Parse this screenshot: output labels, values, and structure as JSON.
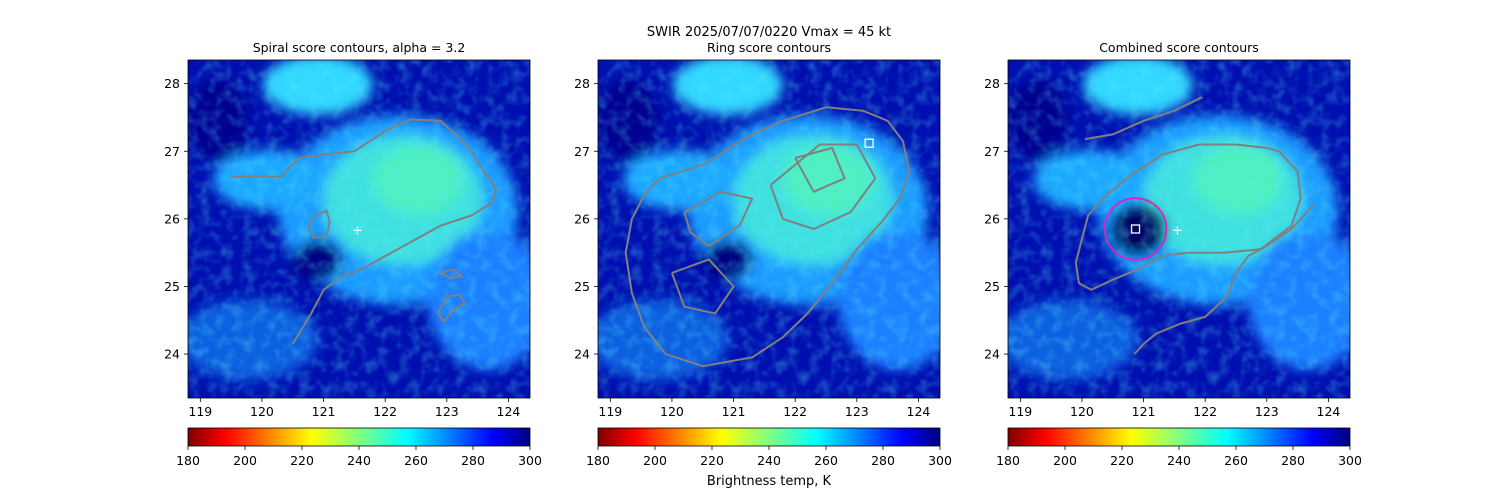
{
  "figure": {
    "suptitle_line1": "SWIR  2025/07/07/0220    Vmax = 45 kt",
    "colorbar_label": "Brightness temp, K"
  },
  "colors": {
    "contour": "#808080",
    "marker": "#ffffff",
    "circle": "#e020c0"
  },
  "chart_data": [
    {
      "type": "heatmap",
      "title": "Spiral score contours, alpha =  3.2",
      "x_ticks": [
        119,
        120,
        121,
        122,
        123,
        124
      ],
      "y_ticks": [
        24,
        25,
        26,
        27,
        28
      ],
      "xlim": [
        118.8,
        124.35
      ],
      "ylim": [
        23.35,
        28.35
      ],
      "center_plus": [
        121.55,
        25.83
      ],
      "contours": [
        [
          [
            119.5,
            26.62
          ],
          [
            120.0,
            26.63
          ],
          [
            120.3,
            26.62
          ],
          [
            120.6,
            26.9
          ],
          [
            121.0,
            26.95
          ],
          [
            121.5,
            27.0
          ],
          [
            122.0,
            27.3
          ],
          [
            122.4,
            27.47
          ],
          [
            122.9,
            27.45
          ],
          [
            123.2,
            27.2
          ],
          [
            123.4,
            27.0
          ],
          [
            123.6,
            26.7
          ],
          [
            123.8,
            26.45
          ],
          [
            123.75,
            26.25
          ],
          [
            123.4,
            26.05
          ],
          [
            122.9,
            25.9
          ],
          [
            122.5,
            25.7
          ],
          [
            122.1,
            25.5
          ],
          [
            121.6,
            25.25
          ],
          [
            121.3,
            25.15
          ],
          [
            121.0,
            24.95
          ],
          [
            120.8,
            24.6
          ],
          [
            120.6,
            24.3
          ],
          [
            120.5,
            24.15
          ]
        ],
        [
          [
            120.85,
            26.05
          ],
          [
            121.05,
            26.12
          ],
          [
            121.1,
            25.95
          ],
          [
            121.05,
            25.75
          ],
          [
            120.85,
            25.72
          ],
          [
            120.75,
            25.85
          ],
          [
            120.85,
            26.05
          ]
        ],
        [
          [
            122.85,
            24.6
          ],
          [
            123.0,
            24.85
          ],
          [
            123.2,
            24.88
          ],
          [
            123.3,
            24.75
          ],
          [
            123.1,
            24.65
          ],
          [
            122.95,
            24.48
          ],
          [
            122.85,
            24.6
          ]
        ],
        [
          [
            122.9,
            25.2
          ],
          [
            123.1,
            25.25
          ],
          [
            123.25,
            25.15
          ],
          [
            123.05,
            25.12
          ],
          [
            122.9,
            25.2
          ]
        ]
      ],
      "colorbar": {
        "ticks": [
          180,
          200,
          220,
          240,
          260,
          280,
          300
        ],
        "range": [
          180,
          300
        ]
      }
    },
    {
      "type": "heatmap",
      "title": "Ring score contours",
      "x_ticks": [
        119,
        120,
        121,
        122,
        123,
        124
      ],
      "y_ticks": [
        24,
        25,
        26,
        27,
        28
      ],
      "xlim": [
        118.8,
        124.35
      ],
      "ylim": [
        23.35,
        28.35
      ],
      "square_marker": [
        123.2,
        27.12
      ],
      "contours": [
        [
          [
            119.8,
            26.6
          ],
          [
            120.5,
            26.8
          ],
          [
            121.2,
            27.2
          ],
          [
            121.8,
            27.45
          ],
          [
            122.5,
            27.65
          ],
          [
            123.1,
            27.6
          ],
          [
            123.5,
            27.45
          ],
          [
            123.75,
            27.15
          ],
          [
            123.85,
            26.7
          ],
          [
            123.7,
            26.3
          ],
          [
            123.4,
            25.95
          ],
          [
            123.0,
            25.55
          ],
          [
            122.6,
            25.05
          ],
          [
            122.2,
            24.6
          ],
          [
            121.8,
            24.25
          ],
          [
            121.3,
            23.95
          ],
          [
            120.5,
            23.82
          ],
          [
            119.9,
            24.0
          ],
          [
            119.55,
            24.4
          ],
          [
            119.35,
            24.9
          ],
          [
            119.25,
            25.5
          ],
          [
            119.35,
            26.0
          ],
          [
            119.55,
            26.35
          ],
          [
            119.8,
            26.6
          ]
        ],
        [
          [
            120.2,
            26.1
          ],
          [
            120.8,
            26.4
          ],
          [
            121.3,
            26.3
          ],
          [
            121.1,
            25.9
          ],
          [
            120.6,
            25.6
          ],
          [
            120.3,
            25.8
          ],
          [
            120.2,
            26.1
          ]
        ],
        [
          [
            121.6,
            26.5
          ],
          [
            122.4,
            27.1
          ],
          [
            123.0,
            27.1
          ],
          [
            123.3,
            26.6
          ],
          [
            122.9,
            26.1
          ],
          [
            122.3,
            25.85
          ],
          [
            121.8,
            26.0
          ],
          [
            121.6,
            26.5
          ]
        ],
        [
          [
            120.0,
            25.2
          ],
          [
            120.6,
            25.4
          ],
          [
            121.0,
            25.0
          ],
          [
            120.7,
            24.6
          ],
          [
            120.2,
            24.7
          ],
          [
            120.0,
            25.2
          ]
        ],
        [
          [
            122.0,
            26.9
          ],
          [
            122.6,
            27.05
          ],
          [
            122.8,
            26.6
          ],
          [
            122.3,
            26.4
          ],
          [
            122.0,
            26.9
          ]
        ]
      ],
      "colorbar": {
        "ticks": [
          180,
          200,
          220,
          240,
          260,
          280,
          300
        ],
        "range": [
          180,
          300
        ]
      }
    },
    {
      "type": "heatmap",
      "title": "Combined score contours",
      "x_ticks": [
        119,
        120,
        121,
        122,
        123,
        124
      ],
      "y_ticks": [
        24,
        25,
        26,
        27,
        28
      ],
      "xlim": [
        118.8,
        124.35
      ],
      "ylim": [
        23.35,
        28.35
      ],
      "center_plus": [
        121.55,
        25.83
      ],
      "square_marker": [
        120.87,
        25.85
      ],
      "circle": {
        "center": [
          120.87,
          25.85
        ],
        "radius_deg": 0.5
      },
      "contours": [
        [
          [
            120.05,
            27.18
          ],
          [
            120.5,
            27.25
          ],
          [
            121.0,
            27.45
          ],
          [
            121.5,
            27.6
          ],
          [
            121.95,
            27.8
          ]
        ],
        [
          [
            123.75,
            26.2
          ],
          [
            123.4,
            25.85
          ],
          [
            123.0,
            25.6
          ],
          [
            122.7,
            25.45
          ],
          [
            122.5,
            25.2
          ],
          [
            122.35,
            24.85
          ],
          [
            122.0,
            24.55
          ],
          [
            121.6,
            24.45
          ],
          [
            121.2,
            24.3
          ],
          [
            121.0,
            24.15
          ],
          [
            120.85,
            24.0
          ]
        ],
        [
          [
            123.2,
            27.0
          ],
          [
            123.5,
            26.7
          ],
          [
            123.55,
            26.3
          ],
          [
            123.4,
            25.9
          ],
          [
            122.9,
            25.55
          ],
          [
            122.3,
            25.5
          ],
          [
            121.7,
            25.5
          ],
          [
            121.3,
            25.45
          ],
          [
            120.9,
            25.25
          ],
          [
            120.5,
            25.1
          ],
          [
            120.15,
            24.95
          ],
          [
            119.95,
            25.05
          ],
          [
            119.9,
            25.35
          ],
          [
            120.0,
            25.7
          ],
          [
            120.1,
            26.05
          ],
          [
            120.4,
            26.35
          ],
          [
            120.8,
            26.65
          ],
          [
            121.3,
            26.95
          ],
          [
            121.9,
            27.1
          ],
          [
            122.5,
            27.1
          ],
          [
            123.0,
            27.05
          ],
          [
            123.2,
            27.0
          ]
        ]
      ],
      "colorbar": {
        "ticks": [
          180,
          200,
          220,
          240,
          260,
          280,
          300
        ],
        "range": [
          180,
          300
        ]
      }
    }
  ]
}
